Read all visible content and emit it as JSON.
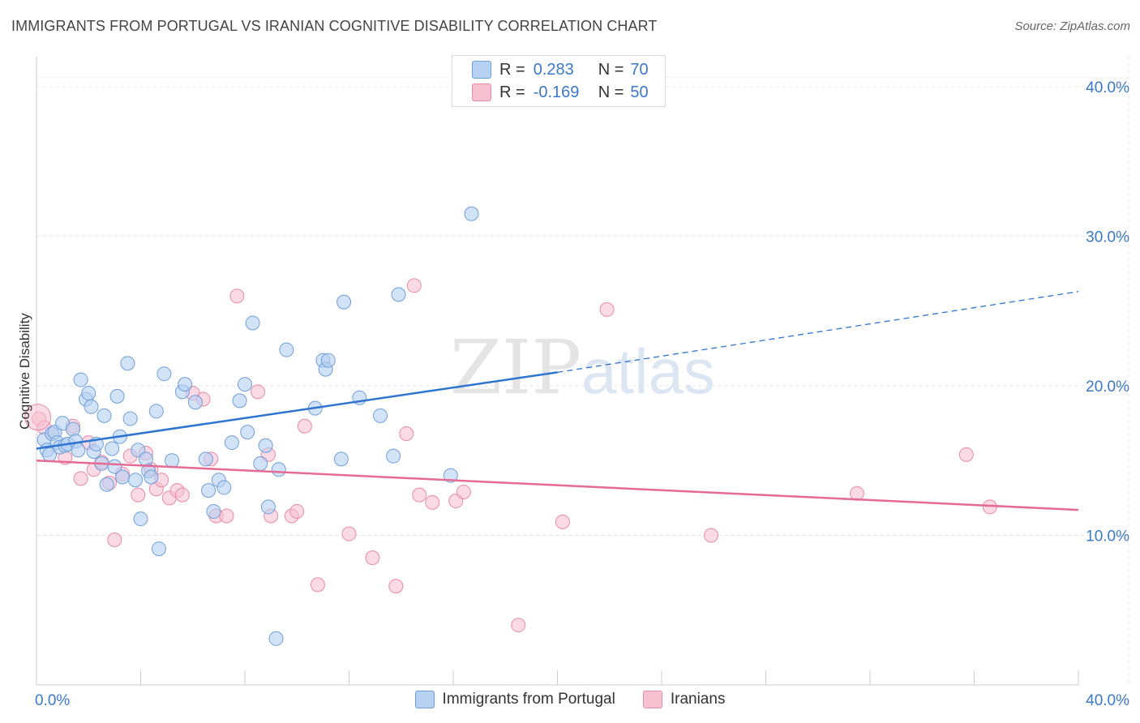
{
  "title": "IMMIGRANTS FROM PORTUGAL VS IRANIAN COGNITIVE DISABILITY CORRELATION CHART",
  "source": "Source: ZipAtlas.com",
  "watermark": {
    "zip": "ZIP",
    "atlas": "atlas"
  },
  "legend": {
    "rows": [
      {
        "r_label": "R =",
        "r_value": "0.283",
        "n_label": "N =",
        "n_value": "70"
      },
      {
        "r_label": "R =",
        "r_value": "-0.169",
        "n_label": "N =",
        "n_value": "50"
      }
    ]
  },
  "colors": {
    "series1_fill": "#b6d1f2",
    "series1_stroke": "#6f9fd8",
    "series1_line": "#2f74cf",
    "series2_fill": "#f7c1d2",
    "series2_stroke": "#e88aa9",
    "series2_line": "#e56b95",
    "tick_text": "#3a78c9",
    "grid": "#e6e6e6"
  },
  "chart_data": {
    "type": "scatter",
    "title": "IMMIGRANTS FROM PORTUGAL VS IRANIAN COGNITIVE DISABILITY CORRELATION CHART",
    "xlabel": "",
    "ylabel": "Cognitive Disability",
    "xlim": [
      0,
      40
    ],
    "ylim": [
      0,
      42
    ],
    "x_tick_labels": [
      "0.0%",
      "40.0%"
    ],
    "y_ticks": [
      10,
      20,
      30,
      40
    ],
    "y_tick_labels": [
      "10.0%",
      "20.0%",
      "30.0%",
      "40.0%"
    ],
    "grid": true,
    "legend_position": "top-center",
    "series": [
      {
        "name": "Immigrants from Portugal",
        "r": 0.283,
        "n": 70,
        "trend": {
          "x0": 0,
          "y0": 15.8,
          "x1": 20,
          "y1": 20.9,
          "dashed_to_x": 40,
          "dashed_to_y": 26.3
        },
        "points": [
          [
            0.3,
            16.4
          ],
          [
            0.4,
            15.7
          ],
          [
            0.5,
            15.4
          ],
          [
            0.6,
            16.8
          ],
          [
            0.7,
            16.9
          ],
          [
            0.8,
            16.2
          ],
          [
            0.9,
            15.9
          ],
          [
            1.0,
            17.5
          ],
          [
            1.1,
            16.0
          ],
          [
            1.2,
            16.1
          ],
          [
            1.4,
            17.1
          ],
          [
            1.5,
            16.3
          ],
          [
            1.6,
            15.7
          ],
          [
            1.7,
            20.4
          ],
          [
            1.9,
            19.1
          ],
          [
            2.0,
            19.5
          ],
          [
            2.1,
            18.6
          ],
          [
            2.2,
            15.6
          ],
          [
            2.3,
            16.1
          ],
          [
            2.5,
            14.8
          ],
          [
            2.6,
            18.0
          ],
          [
            2.7,
            13.4
          ],
          [
            2.9,
            15.8
          ],
          [
            3.0,
            14.6
          ],
          [
            3.1,
            19.3
          ],
          [
            3.2,
            16.6
          ],
          [
            3.3,
            13.9
          ],
          [
            3.5,
            21.5
          ],
          [
            3.6,
            17.8
          ],
          [
            3.8,
            13.7
          ],
          [
            3.9,
            15.7
          ],
          [
            4.0,
            11.1
          ],
          [
            4.2,
            15.1
          ],
          [
            4.3,
            14.3
          ],
          [
            4.4,
            13.9
          ],
          [
            4.6,
            18.3
          ],
          [
            4.7,
            9.1
          ],
          [
            4.9,
            20.8
          ],
          [
            5.2,
            15.0
          ],
          [
            5.6,
            19.6
          ],
          [
            5.7,
            20.1
          ],
          [
            6.1,
            18.9
          ],
          [
            6.5,
            15.1
          ],
          [
            6.6,
            13.0
          ],
          [
            6.8,
            11.6
          ],
          [
            7.0,
            13.7
          ],
          [
            7.2,
            13.2
          ],
          [
            7.5,
            16.2
          ],
          [
            7.8,
            19.0
          ],
          [
            8.0,
            20.1
          ],
          [
            8.1,
            16.9
          ],
          [
            8.3,
            24.2
          ],
          [
            8.6,
            14.8
          ],
          [
            8.8,
            16.0
          ],
          [
            8.9,
            11.9
          ],
          [
            9.2,
            3.1
          ],
          [
            9.3,
            14.4
          ],
          [
            9.6,
            22.4
          ],
          [
            10.7,
            18.5
          ],
          [
            11.0,
            21.7
          ],
          [
            11.1,
            21.1
          ],
          [
            11.2,
            21.7
          ],
          [
            11.7,
            15.1
          ],
          [
            11.8,
            25.6
          ],
          [
            12.4,
            19.2
          ],
          [
            13.2,
            18.0
          ],
          [
            13.7,
            15.3
          ],
          [
            13.9,
            26.1
          ],
          [
            15.9,
            14.0
          ],
          [
            16.7,
            31.5
          ]
        ]
      },
      {
        "name": "Iranians",
        "r": -0.169,
        "n": 50,
        "trend": {
          "x0": 0,
          "y0": 15.0,
          "x1": 40,
          "y1": 11.7
        },
        "points": [
          [
            0.1,
            17.8
          ],
          [
            0.3,
            17.2
          ],
          [
            0.6,
            16.8
          ],
          [
            1.1,
            15.2
          ],
          [
            1.4,
            17.3
          ],
          [
            1.7,
            13.8
          ],
          [
            2.0,
            16.2
          ],
          [
            2.2,
            14.4
          ],
          [
            2.5,
            14.9
          ],
          [
            2.8,
            13.5
          ],
          [
            3.0,
            9.7
          ],
          [
            3.3,
            14.1
          ],
          [
            3.6,
            15.3
          ],
          [
            3.9,
            12.7
          ],
          [
            4.2,
            15.5
          ],
          [
            4.4,
            14.4
          ],
          [
            4.6,
            13.1
          ],
          [
            4.8,
            13.7
          ],
          [
            5.1,
            12.5
          ],
          [
            5.4,
            13.0
          ],
          [
            5.6,
            12.7
          ],
          [
            6.0,
            19.5
          ],
          [
            6.4,
            19.1
          ],
          [
            6.7,
            15.1
          ],
          [
            6.9,
            11.3
          ],
          [
            7.3,
            11.3
          ],
          [
            7.7,
            26.0
          ],
          [
            8.5,
            19.6
          ],
          [
            8.9,
            15.4
          ],
          [
            9.0,
            11.3
          ],
          [
            9.8,
            11.3
          ],
          [
            10.0,
            11.6
          ],
          [
            10.3,
            17.3
          ],
          [
            10.8,
            6.7
          ],
          [
            12.0,
            10.1
          ],
          [
            12.9,
            8.5
          ],
          [
            13.8,
            6.6
          ],
          [
            14.2,
            16.8
          ],
          [
            14.5,
            26.7
          ],
          [
            14.7,
            12.7
          ],
          [
            15.2,
            12.2
          ],
          [
            16.1,
            12.3
          ],
          [
            16.4,
            12.9
          ],
          [
            18.5,
            4.0
          ],
          [
            20.2,
            10.9
          ],
          [
            21.9,
            25.1
          ],
          [
            25.9,
            10.0
          ],
          [
            31.5,
            12.8
          ],
          [
            35.7,
            15.4
          ],
          [
            36.6,
            11.9
          ]
        ]
      }
    ]
  }
}
